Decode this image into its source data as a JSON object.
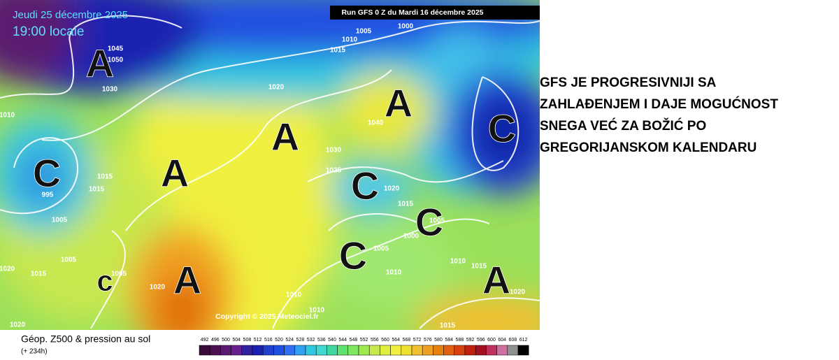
{
  "header": {
    "date": "Jeudi 25 décembre 2025",
    "time": "19:00 locale",
    "run": "Run GFS 0 Z du Mardi 16 décembre 2025"
  },
  "map": {
    "centers": [
      "A",
      "A",
      "A",
      "A",
      "C",
      "C",
      "C",
      "C",
      "C",
      "c",
      "A",
      "A"
    ],
    "isobars": [
      "1045",
      "1050",
      "1030",
      "1010",
      "1020",
      "1005",
      "1010",
      "1015",
      "1000",
      "1040",
      "1030",
      "1025",
      "1020",
      "1015",
      "1005",
      "1000",
      "1005",
      "1010",
      "1010",
      "1015",
      "1020",
      "1010",
      "1010",
      "1015",
      "1020",
      "1020",
      "1005",
      "1015",
      "1020",
      "1005",
      "1005",
      "995",
      "1015",
      "1015"
    ],
    "copyright": "Copyright © 2025 Meteociel.fr"
  },
  "legend": {
    "title": "Géop. Z500 & pression au sol",
    "lead": "(+ 234h)",
    "scale": [
      492,
      496,
      500,
      504,
      508,
      512,
      516,
      520,
      524,
      528,
      532,
      536,
      540,
      544,
      548,
      552,
      556,
      560,
      564,
      568,
      572,
      576,
      580,
      584,
      588,
      592,
      596,
      600,
      604,
      608,
      612
    ]
  },
  "caption": {
    "lines": [
      "GFS JE PROGRESIVNIJI SA",
      "ZAHLAĐENJEM I DAJE MOGUĆNOST",
      "SNEGA VEĆ ZA BOŽIĆ PO",
      "GREGORIJANSKOM KALENDARU"
    ]
  }
}
